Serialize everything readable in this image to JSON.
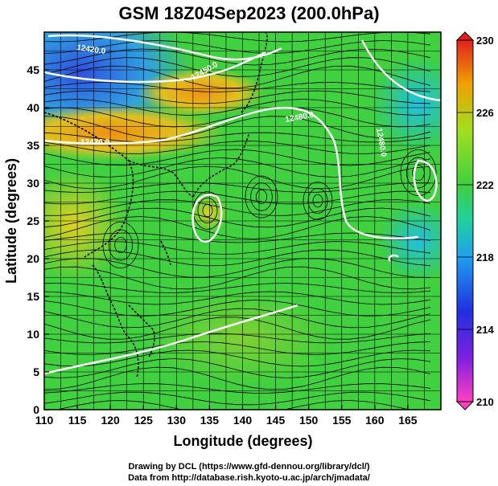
{
  "title": "GSM 18Z04Sep2023 (200.0hPa)",
  "axes": {
    "xlabel": "Longitude (degrees)",
    "ylabel": "Latitude  (degrees)",
    "x_ticks": [
      "110",
      "115",
      "120",
      "125",
      "130",
      "135",
      "140",
      "145",
      "150",
      "155",
      "160",
      "165"
    ],
    "y_ticks": [
      "0",
      "5",
      "10",
      "15",
      "20",
      "25",
      "30",
      "35",
      "40",
      "45"
    ],
    "x_range": [
      110,
      170
    ],
    "y_range": [
      0,
      50
    ]
  },
  "colorbar": {
    "labels": [
      "230",
      "226",
      "222",
      "218",
      "214",
      "210"
    ],
    "range": [
      210,
      230
    ]
  },
  "contour_labels": [
    "12420.0",
    "12450.0",
    "12420.0",
    "12480.0",
    "12480.0"
  ],
  "credits": {
    "line1": "Drawing by DCL (https://www.gfd-dennou.org/library/dcl/)",
    "line2": "Data from http://database.rish.kyoto-u.ac.jp/arch/jmadata/"
  },
  "colors": {
    "cold": "#2040e0",
    "cool": "#20c0f0",
    "mid": "#40d040",
    "warm": "#f0a000",
    "hot": "#e02020"
  }
}
